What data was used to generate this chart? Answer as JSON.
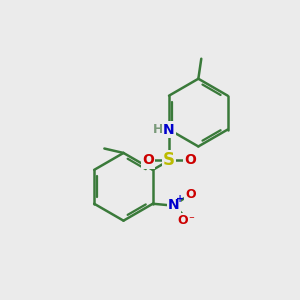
{
  "bg_color": "#ebebeb",
  "bond_color": "#3a7a3a",
  "bond_width": 1.8,
  "S_color": "#bbbb00",
  "N_color": "#0000cc",
  "O_color": "#cc0000",
  "H_color": "#7a9a7a",
  "figsize": [
    3.0,
    3.0
  ],
  "dpi": 100,
  "xlim": [
    0,
    10
  ],
  "ylim": [
    0,
    10
  ]
}
